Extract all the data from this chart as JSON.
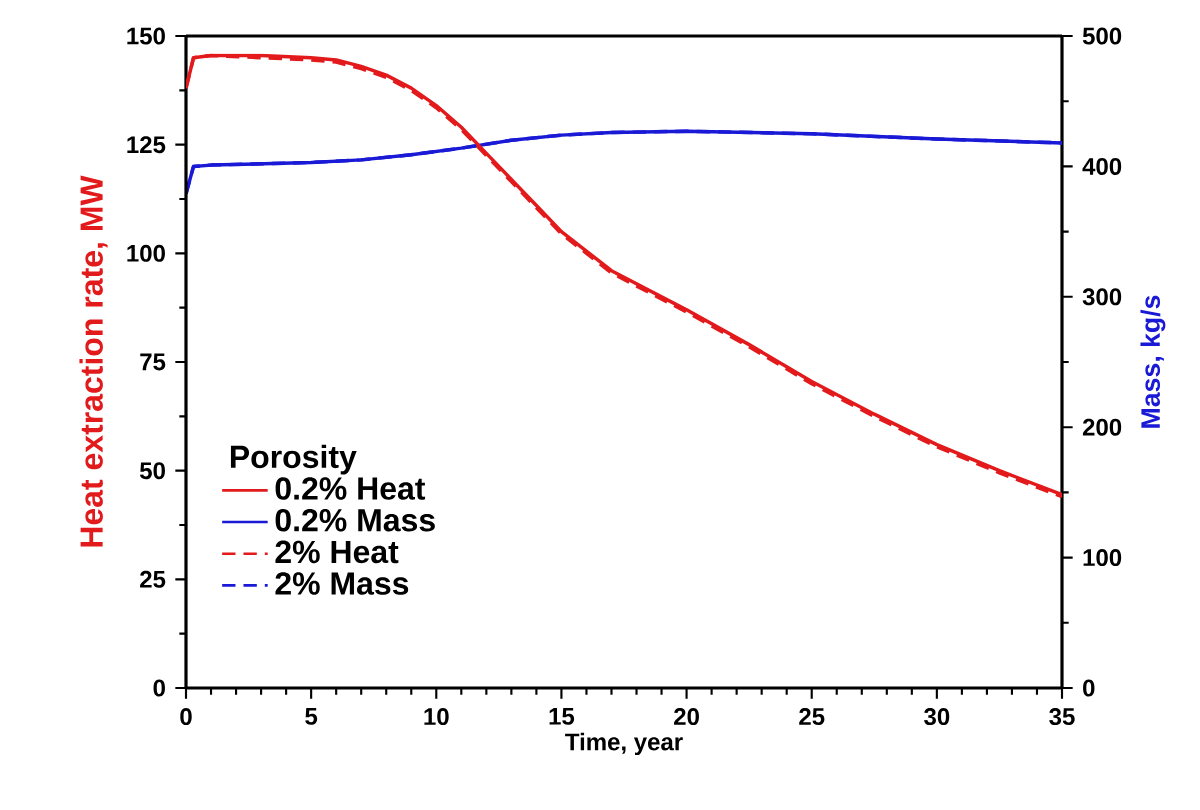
{
  "chart_data": {
    "type": "line",
    "xlabel": "Time, year",
    "ylabel": "Heat extraction rate, MW",
    "y2label": "Mass, kg/s",
    "legend_title": "Porosity",
    "legend": "left",
    "xlim": [
      0,
      35
    ],
    "xticks": [
      0,
      5,
      10,
      15,
      20,
      25,
      30,
      35
    ],
    "ylim": [
      0,
      150
    ],
    "yticks": [
      0,
      25,
      50,
      75,
      100,
      125,
      150
    ],
    "y2lim": [
      0,
      500
    ],
    "y2ticks": [
      0,
      100,
      200,
      300,
      400,
      500
    ],
    "grid": false,
    "series": [
      {
        "name": "0.2% Heat",
        "color": "#e31a1c",
        "line_style": "solid",
        "x": [
          0,
          0.3,
          1,
          3,
          5,
          6,
          7,
          8,
          9,
          10,
          11,
          12,
          13,
          14,
          15,
          17,
          20,
          22.5,
          25,
          27.5,
          30,
          32.5,
          35
        ],
        "values": [
          138,
          145,
          145.5,
          145.5,
          145,
          144.5,
          143,
          141,
          138,
          134,
          129,
          123,
          117,
          111,
          105,
          96,
          87,
          79,
          70.5,
          63,
          56,
          50,
          44.5
        ]
      },
      {
        "name": "0.2% Mass",
        "color": "#1a1ad6",
        "line_style": "solid",
        "axis": "y2",
        "x": [
          0,
          0.3,
          1,
          3,
          5,
          7,
          9,
          11,
          13,
          15,
          17,
          20,
          25,
          30,
          35
        ],
        "values": [
          379,
          400,
          401,
          402,
          403,
          405,
          409,
          414,
          420,
          424,
          426,
          427,
          425,
          421,
          418
        ]
      },
      {
        "name": "2% Heat",
        "color": "#e31a1c",
        "line_style": "dashed",
        "x": [
          0,
          0.3,
          1,
          3,
          5,
          6,
          7,
          8,
          9,
          10,
          11,
          12,
          13,
          14,
          15,
          17,
          20,
          22.5,
          25,
          27.5,
          30,
          32.5,
          35
        ],
        "values": [
          138,
          145,
          145.5,
          145,
          144.5,
          144,
          142.5,
          140.5,
          137.5,
          133.5,
          128.5,
          122.5,
          116.5,
          110.5,
          104.5,
          95.5,
          86.5,
          78.5,
          70,
          62.5,
          55.5,
          49.5,
          44
        ]
      },
      {
        "name": "2% Mass",
        "color": "#1a1ad6",
        "line_style": "dashed",
        "axis": "y2",
        "x": [
          0,
          0.3,
          1,
          3,
          5,
          7,
          9,
          11,
          13,
          15,
          17,
          20,
          25,
          30,
          35
        ],
        "values": [
          379,
          400,
          401,
          402,
          403,
          405,
          409,
          414,
          420,
          424,
          426,
          427,
          425,
          421,
          418
        ]
      }
    ]
  }
}
